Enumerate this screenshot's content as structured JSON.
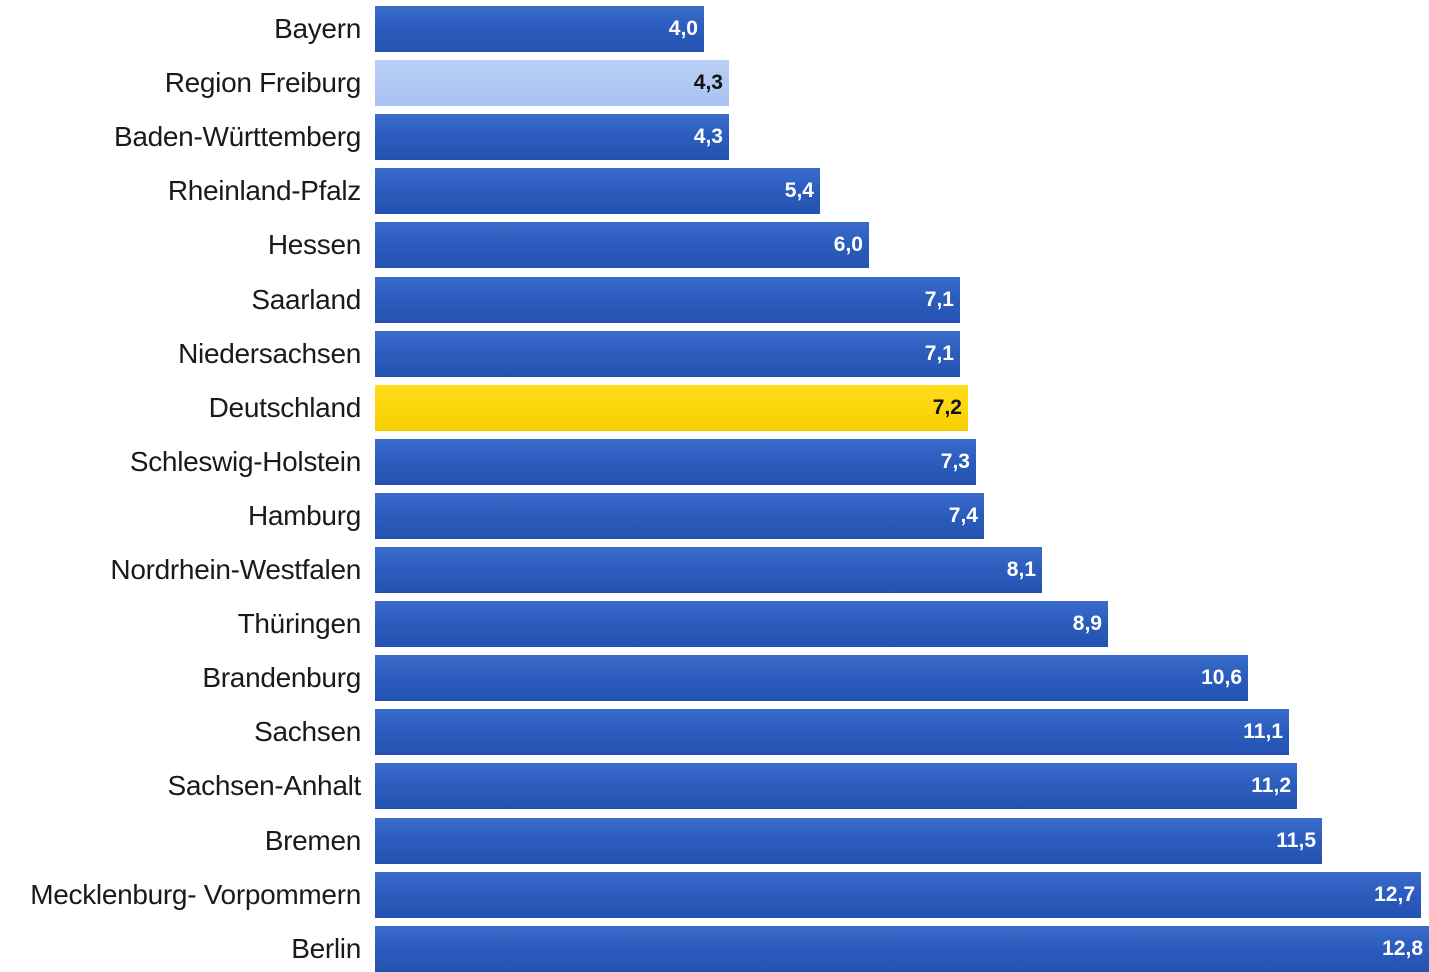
{
  "chart_data": {
    "type": "bar",
    "orientation": "horizontal",
    "categories": [
      "Bayern",
      "Region Freiburg",
      "Baden-Württemberg",
      "Rheinland-Pfalz",
      "Hessen",
      "Saarland",
      "Niedersachsen",
      "Deutschland",
      "Schleswig-Holstein",
      "Hamburg",
      "Nordrhein-Westfalen",
      "Thüringen",
      "Brandenburg",
      "Sachsen",
      "Sachsen-Anhalt",
      "Bremen",
      "Mecklenburg- Vorpommern",
      "Berlin"
    ],
    "values": [
      4.0,
      4.3,
      4.3,
      5.4,
      6.0,
      7.1,
      7.1,
      7.2,
      7.3,
      7.4,
      8.1,
      8.9,
      10.6,
      11.1,
      11.2,
      11.5,
      12.7,
      12.8
    ],
    "value_labels": [
      "4,0",
      "4,3",
      "4,3",
      "5,4",
      "6,0",
      "7,1",
      "7,1",
      "7,2",
      "7,3",
      "7,4",
      "8,1",
      "8,9",
      "10,6",
      "11,1",
      "11,2",
      "11,5",
      "12,7",
      "12,8"
    ],
    "highlights": {
      "Region Freiburg": "light",
      "Deutschland": "yellow"
    },
    "colors": {
      "default": "#2b5cbd",
      "light": "#aec6f4",
      "yellow": "#fcd600"
    },
    "title": "",
    "xlabel": "",
    "ylabel": "",
    "xlim": [
      0,
      12.8
    ],
    "grid": false,
    "legend": "none"
  }
}
